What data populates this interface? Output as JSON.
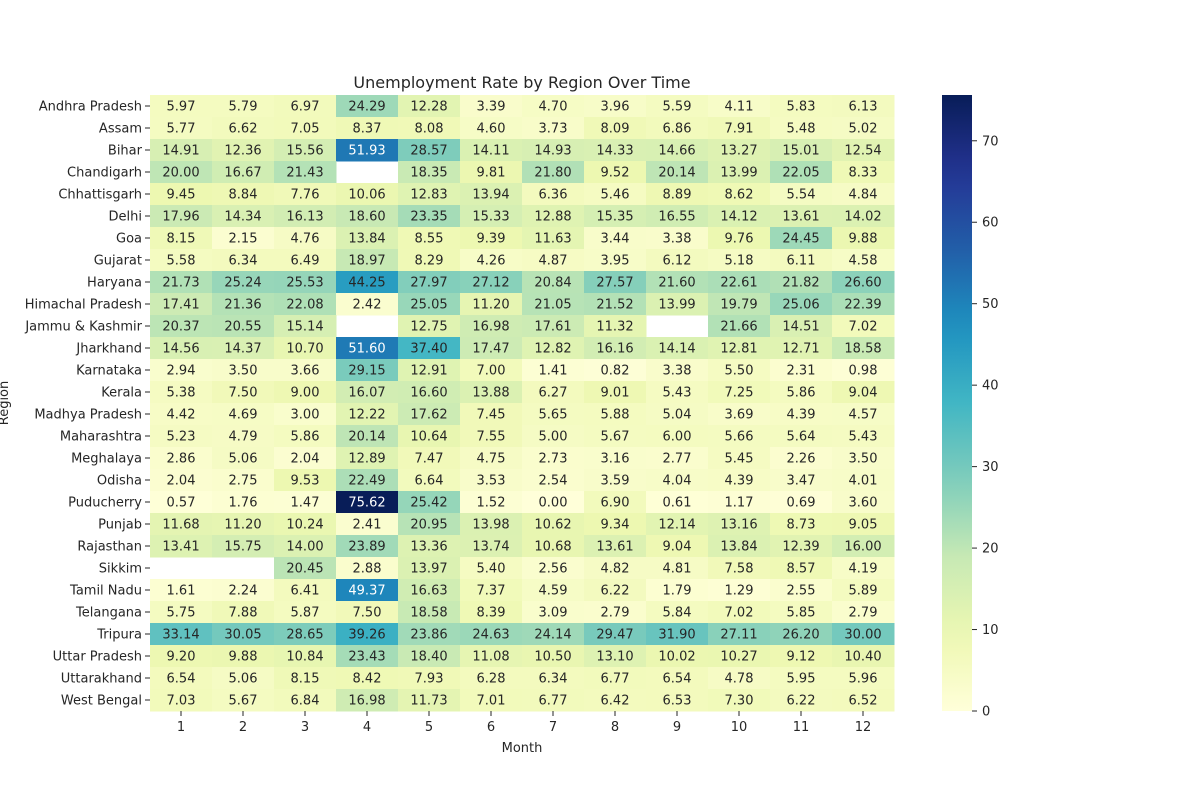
{
  "chart_data": {
    "type": "heatmap",
    "title": "Unemployment Rate by Region Over Time",
    "xlabel": "Month",
    "ylabel": "Region",
    "x": [
      "1",
      "2",
      "3",
      "4",
      "5",
      "6",
      "7",
      "8",
      "9",
      "10",
      "11",
      "12"
    ],
    "y": [
      "Andhra Pradesh",
      "Assam",
      "Bihar",
      "Chandigarh",
      "Chhattisgarh",
      "Delhi",
      "Goa",
      "Gujarat",
      "Haryana",
      "Himachal Pradesh",
      "Jammu & Kashmir",
      "Jharkhand",
      "Karnataka",
      "Kerala",
      "Madhya Pradesh",
      "Maharashtra",
      "Meghalaya",
      "Odisha",
      "Puducherry",
      "Punjab",
      "Rajasthan",
      "Sikkim",
      "Tamil Nadu",
      "Telangana",
      "Tripura",
      "Uttar Pradesh",
      "Uttarakhand",
      "West Bengal"
    ],
    "values": [
      [
        5.97,
        5.79,
        6.97,
        24.29,
        12.28,
        3.39,
        4.7,
        3.96,
        5.59,
        4.11,
        5.83,
        6.13
      ],
      [
        5.77,
        6.62,
        7.05,
        8.37,
        8.08,
        4.6,
        3.73,
        8.09,
        6.86,
        7.91,
        5.48,
        5.02
      ],
      [
        14.91,
        12.36,
        15.56,
        51.93,
        28.57,
        14.11,
        14.93,
        14.33,
        14.66,
        13.27,
        15.01,
        12.54
      ],
      [
        20.0,
        16.67,
        21.43,
        null,
        18.35,
        9.81,
        21.8,
        9.52,
        20.14,
        13.99,
        22.05,
        8.33
      ],
      [
        9.45,
        8.84,
        7.76,
        10.06,
        12.83,
        13.94,
        6.36,
        5.46,
        8.89,
        8.62,
        5.54,
        4.84
      ],
      [
        17.96,
        14.34,
        16.13,
        18.6,
        23.35,
        15.33,
        12.88,
        15.35,
        16.55,
        14.12,
        13.61,
        14.02
      ],
      [
        8.15,
        2.15,
        4.76,
        13.84,
        8.55,
        9.39,
        11.63,
        3.44,
        3.38,
        9.76,
        24.45,
        9.88
      ],
      [
        5.58,
        6.34,
        6.49,
        18.97,
        8.29,
        4.26,
        4.87,
        3.95,
        6.12,
        5.18,
        6.11,
        4.58
      ],
      [
        21.73,
        25.24,
        25.53,
        44.25,
        27.97,
        27.12,
        20.84,
        27.57,
        21.6,
        22.61,
        21.82,
        26.6
      ],
      [
        17.41,
        21.36,
        22.08,
        2.42,
        25.05,
        11.2,
        21.05,
        21.52,
        13.99,
        19.79,
        25.06,
        22.39
      ],
      [
        20.37,
        20.55,
        15.14,
        null,
        12.75,
        16.98,
        17.61,
        11.32,
        null,
        21.66,
        14.51,
        7.02
      ],
      [
        14.56,
        14.37,
        10.7,
        51.6,
        37.4,
        17.47,
        12.82,
        16.16,
        14.14,
        12.81,
        12.71,
        18.58
      ],
      [
        2.94,
        3.5,
        3.66,
        29.15,
        12.91,
        7.0,
        1.41,
        0.82,
        3.38,
        5.5,
        2.31,
        0.98
      ],
      [
        5.38,
        7.5,
        9.0,
        16.07,
        16.6,
        13.88,
        6.27,
        9.01,
        5.43,
        7.25,
        5.86,
        9.04
      ],
      [
        4.42,
        4.69,
        3.0,
        12.22,
        17.62,
        7.45,
        5.65,
        5.88,
        5.04,
        3.69,
        4.39,
        4.57
      ],
      [
        5.23,
        4.79,
        5.86,
        20.14,
        10.64,
        7.55,
        5.0,
        5.67,
        6.0,
        5.66,
        5.64,
        5.43
      ],
      [
        2.86,
        5.06,
        2.04,
        12.89,
        7.47,
        4.75,
        2.73,
        3.16,
        2.77,
        5.45,
        2.26,
        3.5
      ],
      [
        2.04,
        2.75,
        9.53,
        22.49,
        6.64,
        3.53,
        2.54,
        3.59,
        4.04,
        4.39,
        3.47,
        4.01
      ],
      [
        0.57,
        1.76,
        1.47,
        75.62,
        25.42,
        1.52,
        0.0,
        6.9,
        0.61,
        1.17,
        0.69,
        3.6
      ],
      [
        11.68,
        11.2,
        10.24,
        2.41,
        20.95,
        13.98,
        10.62,
        9.34,
        12.14,
        13.16,
        8.73,
        9.05
      ],
      [
        13.41,
        15.75,
        14.0,
        23.89,
        13.36,
        13.74,
        10.68,
        13.61,
        9.04,
        13.84,
        12.39,
        16.0
      ],
      [
        null,
        null,
        20.45,
        2.88,
        13.97,
        5.4,
        2.56,
        4.82,
        4.81,
        7.58,
        8.57,
        4.19
      ],
      [
        1.61,
        2.24,
        6.41,
        49.37,
        16.63,
        7.37,
        4.59,
        6.22,
        1.79,
        1.29,
        2.55,
        5.89
      ],
      [
        5.75,
        7.88,
        5.87,
        7.5,
        18.58,
        8.39,
        3.09,
        2.79,
        5.84,
        7.02,
        5.85,
        2.79
      ],
      [
        33.14,
        30.05,
        28.65,
        39.26,
        23.86,
        24.63,
        24.14,
        29.47,
        31.9,
        27.11,
        26.2,
        30.0
      ],
      [
        9.2,
        9.88,
        10.84,
        23.43,
        18.4,
        11.08,
        10.5,
        13.1,
        10.02,
        10.27,
        9.12,
        10.4
      ],
      [
        6.54,
        5.06,
        8.15,
        8.42,
        7.93,
        6.28,
        6.34,
        6.77,
        6.54,
        4.78,
        5.95,
        5.96
      ],
      [
        7.03,
        5.67,
        6.84,
        16.98,
        11.73,
        7.01,
        6.77,
        6.42,
        6.53,
        7.3,
        6.22,
        6.52
      ]
    ],
    "value_format": "2 decimals",
    "vmin": 0,
    "vmax": 75.62,
    "colormap": "YlGnBu",
    "colorbar_ticks": [
      0,
      10,
      20,
      30,
      40,
      50,
      60,
      70
    ],
    "grid": false,
    "legend": "colorbar right"
  }
}
